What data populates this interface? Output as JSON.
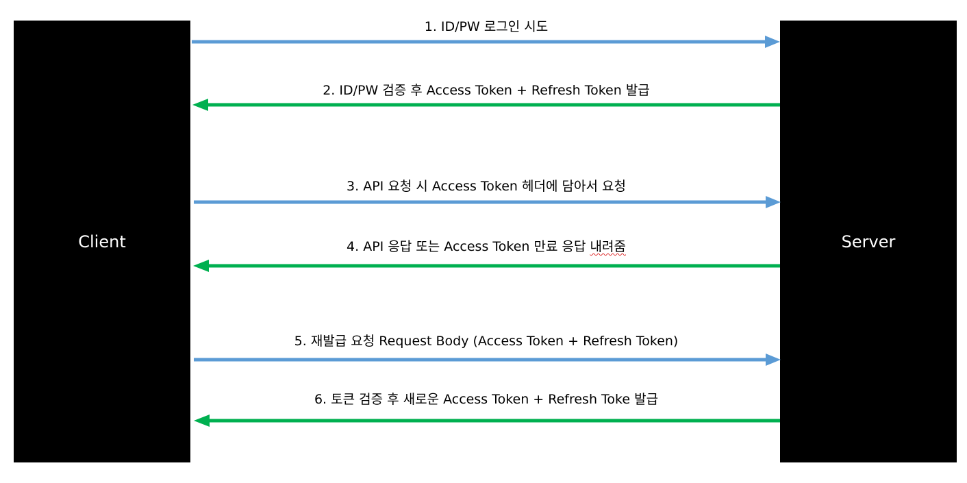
{
  "actors": {
    "client": "Client",
    "server": "Server"
  },
  "colors": {
    "request_arrow": "#5b9bd5",
    "response_arrow": "#00b050",
    "actor_fill": "#000000"
  },
  "messages": [
    {
      "text": "1. ID/PW 로그인 시도",
      "direction": "client-to-server"
    },
    {
      "text": "2. ID/PW 검증 후 Access Token + Refresh Token 발급",
      "direction": "server-to-client"
    },
    {
      "text": "3. API 요청 시 Access Token 헤더에 담아서 요청",
      "direction": "client-to-server"
    },
    {
      "text_main": "4. API 응답 또는 Access Token 만료 응답 ",
      "text_marked": "내려줌",
      "direction": "server-to-client"
    },
    {
      "text": "5. 재발급 요청 Request Body (Access Token + Refresh Token)",
      "direction": "client-to-server"
    },
    {
      "text": "6. 토큰 검증 후 새로운 Access Token + Refresh Toke 발급",
      "direction": "server-to-client"
    }
  ]
}
